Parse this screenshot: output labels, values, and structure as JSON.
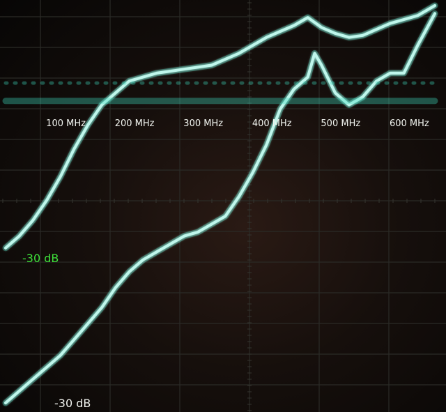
{
  "chart_data": {
    "type": "line",
    "title": "",
    "x_unit": "MHz",
    "xlim": [
      0,
      625
    ],
    "ylim": [
      0,
      100
    ],
    "grid": true,
    "tick_labels": [
      "100 MHz",
      "200 MHz",
      "300 MHz",
      "400 MHz",
      "500 MHz",
      "600 MHz"
    ],
    "tick_values": [
      100,
      200,
      300,
      400,
      500,
      600
    ],
    "reference_labels": [
      {
        "text": "-30 dB",
        "color": "#3ee03a"
      },
      {
        "text": "-30 dB",
        "color": "#f0f2ee"
      }
    ],
    "colors": {
      "trace": "#bff7ec",
      "trace_glow": "#3fe0c4",
      "dotted_marker": "#7ff0b8",
      "grid": "#2b2b27"
    },
    "series": [
      {
        "x": [
          0,
          20,
          40,
          60,
          80,
          100,
          120,
          140,
          160,
          180,
          200,
          220,
          240,
          260,
          280,
          300,
          320,
          340,
          360,
          380,
          400,
          420,
          440,
          460,
          480,
          500,
          520,
          540,
          560,
          580,
          600,
          625
        ],
        "y": [
          39,
          42,
          46,
          51,
          57,
          64,
          70,
          75,
          78,
          81,
          82,
          83,
          83.5,
          84,
          84.5,
          85,
          86.5,
          88,
          90,
          92,
          93.5,
          95,
          97,
          94.5,
          93,
          92,
          92.5,
          94,
          95.5,
          96.5,
          97.5,
          100
        ]
      },
      {
        "x": [
          0,
          20,
          40,
          60,
          80,
          100,
          120,
          140,
          160,
          180,
          200,
          220,
          240,
          260,
          280,
          300,
          320,
          340,
          360,
          380,
          400,
          420,
          440,
          450,
          460,
          480,
          500,
          520,
          540,
          560,
          580,
          600,
          625
        ],
        "y": [
          0,
          3,
          6,
          9,
          12,
          16,
          20,
          24,
          29,
          33,
          36,
          38,
          40,
          42,
          43,
          45,
          47,
          52,
          58,
          65,
          74,
          79,
          82,
          88,
          85,
          78,
          75,
          77,
          81,
          83,
          83,
          90,
          98
        ]
      },
      {
        "x": [
          0,
          625
        ],
        "y": [
          76,
          76
        ]
      },
      {
        "x": [
          0,
          625
        ],
        "y": [
          80.5,
          80.5
        ]
      }
    ]
  }
}
